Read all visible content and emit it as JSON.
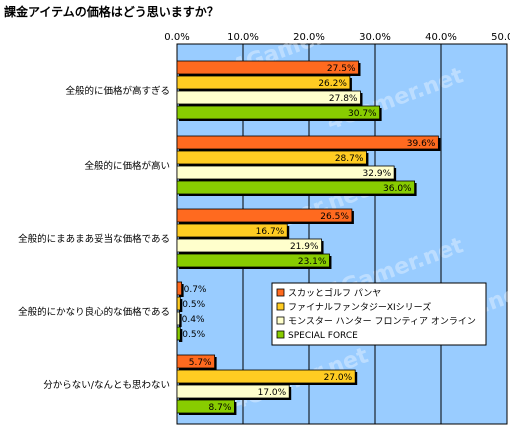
{
  "chart_data": {
    "type": "bar",
    "orientation": "horizontal",
    "title": "課金アイテムの価格はどう思いますか？",
    "categories": [
      "全般的に価格が高すぎる",
      "全般的に価格が高い",
      "全般的にまあまあ妥当な価格である",
      "全般的にかなり良心的な価格である",
      "分からない/なんとも思わない"
    ],
    "series": [
      {
        "name": "スカッとゴルフ パンヤ",
        "values": [
          27.5,
          39.6,
          26.5,
          0.7,
          5.7
        ],
        "labels": [
          "27.5%",
          "39.6%",
          "26.5%",
          "0.7%",
          "5.7%"
        ],
        "color": "#ff6a1f"
      },
      {
        "name": "ファイナルファンタジーXIシリーズ",
        "values": [
          26.2,
          28.7,
          16.7,
          0.5,
          27.0
        ],
        "labels": [
          "26.2%",
          "28.7%",
          "16.7%",
          "0.5%",
          "27.0%"
        ],
        "color": "#ffcc22"
      },
      {
        "name": "モンスター ハンター フロンティア オンライン",
        "values": [
          27.8,
          32.9,
          21.9,
          0.4,
          17.0
        ],
        "labels": [
          "27.8%",
          "32.9%",
          "21.9%",
          "0.4%",
          "17.0%"
        ],
        "color": "#ffffcc"
      },
      {
        "name": "SPECIAL FORCE",
        "values": [
          30.7,
          36.0,
          23.1,
          0.5,
          8.7
        ],
        "labels": [
          "30.7%",
          "36.0%",
          "23.1%",
          "0.5%",
          "8.7%"
        ],
        "color": "#88cc00"
      }
    ],
    "xlim": [
      0,
      50
    ],
    "xticks": [
      "0.0%",
      "10.0%",
      "20.0%",
      "30.0%",
      "40.0%",
      "50.0%"
    ],
    "grid": true,
    "legend_position": "inside-right",
    "plot_background": "#99ccff",
    "watermark": "4Gamer.net"
  }
}
